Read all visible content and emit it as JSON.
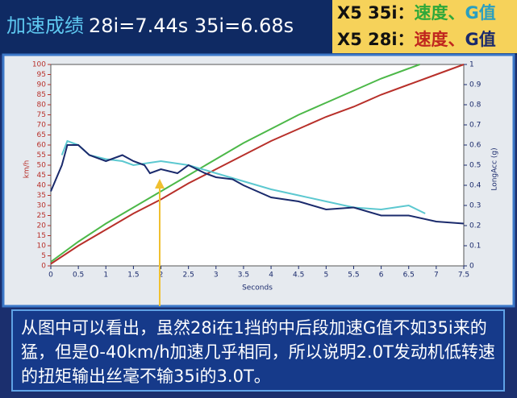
{
  "header": {
    "title_parts": [
      "加速成绩",
      "28i=7.44s 35i=6.68s"
    ]
  },
  "legend": [
    {
      "model": "X5 35i：",
      "speed": "速度、",
      "g": "G值"
    },
    {
      "model": "X5 28i：",
      "speed": "速度、",
      "g": "G值"
    }
  ],
  "chart_data": {
    "type": "line",
    "ylabel": "km/h",
    "y2label": "LongAcc (g)",
    "xlabel": "Seconds",
    "xlim": [
      0,
      7.5
    ],
    "xticks": [
      0,
      0.5,
      1,
      1.5,
      2,
      2.5,
      3,
      3.5,
      4,
      4.5,
      5,
      5.5,
      6,
      6.5,
      7,
      7.5
    ],
    "ylim": [
      0,
      100
    ],
    "yticks": [
      0,
      5,
      10,
      15,
      20,
      25,
      30,
      35,
      40,
      45,
      50,
      55,
      60,
      65,
      70,
      75,
      80,
      85,
      90,
      95,
      100
    ],
    "y2lim": [
      0,
      1
    ],
    "y2ticks": [
      0,
      0.1,
      0.2,
      0.3,
      0.4,
      0.5,
      0.6,
      0.7,
      0.8,
      0.9,
      1
    ],
    "series": [
      {
        "color": "#4cb848",
        "x": [
          0,
          0.5,
          1,
          1.5,
          2,
          2.5,
          3,
          3.5,
          4,
          4.5,
          5,
          5.5,
          6,
          6.5,
          6.7
        ],
        "values": [
          2,
          12,
          21,
          29,
          37,
          45,
          53,
          61,
          68,
          75,
          81,
          87,
          93,
          98,
          100
        ]
      },
      {
        "color": "#b8302a",
        "x": [
          0,
          0.5,
          1,
          1.5,
          2,
          2.5,
          3,
          3.5,
          4,
          4.5,
          5,
          5.5,
          6,
          6.5,
          7,
          7.5
        ],
        "values": [
          1,
          10,
          18,
          26,
          33,
          41,
          48,
          55,
          62,
          68,
          74,
          79,
          85,
          90,
          95,
          100
        ]
      },
      {
        "color": "#5cc8d0",
        "axis": "y2",
        "x": [
          0.2,
          0.3,
          0.5,
          0.7,
          1,
          1.3,
          1.5,
          2,
          2.5,
          3,
          3.5,
          4,
          4.5,
          5,
          5.5,
          6,
          6.5,
          6.8
        ],
        "values": [
          0.55,
          0.62,
          0.6,
          0.55,
          0.53,
          0.52,
          0.5,
          0.52,
          0.5,
          0.46,
          0.42,
          0.38,
          0.35,
          0.32,
          0.29,
          0.28,
          0.3,
          0.26
        ]
      },
      {
        "color": "#1a2a6c",
        "axis": "y2",
        "x": [
          0,
          0.2,
          0.3,
          0.5,
          0.7,
          1,
          1.3,
          1.5,
          1.7,
          1.8,
          2,
          2.3,
          2.5,
          2.8,
          3,
          3.3,
          3.5,
          4,
          4.5,
          5,
          5.5,
          6,
          6.5,
          7,
          7.5
        ],
        "values": [
          0.37,
          0.5,
          0.6,
          0.6,
          0.55,
          0.52,
          0.55,
          0.52,
          0.5,
          0.46,
          0.48,
          0.46,
          0.5,
          0.46,
          0.44,
          0.43,
          0.4,
          0.34,
          0.32,
          0.28,
          0.29,
          0.25,
          0.25,
          0.22,
          0.21
        ]
      }
    ]
  },
  "caption": "从图中可以看出，虽然28i在1挡的中后段加速G值不如35i来的猛，但是0-40km/h加速几乎相同，所以说明2.0T发动机低转速的扭矩输出丝毫不输35i的3.0T。"
}
